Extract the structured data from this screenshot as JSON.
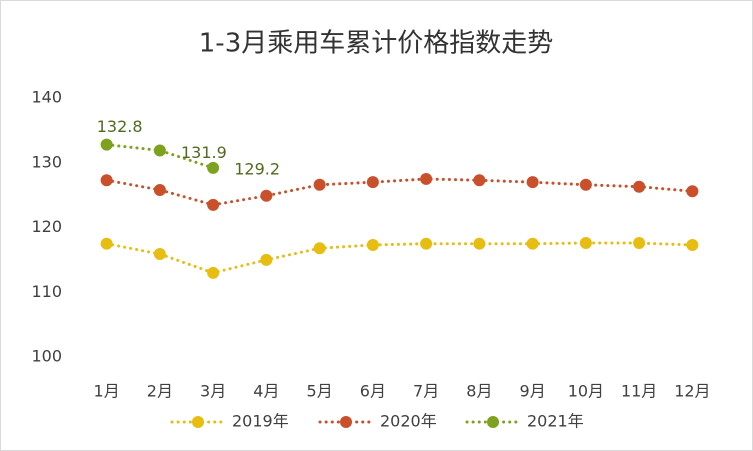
{
  "chart_data": {
    "type": "line",
    "title": "1-3月乘用车累计价格指数走势",
    "categories": [
      "1月",
      "2月",
      "3月",
      "4月",
      "5月",
      "6月",
      "7月",
      "8月",
      "9月",
      "10月",
      "11月",
      "12月"
    ],
    "series": [
      {
        "name": "2019年",
        "color": "#e8bd12",
        "values": [
          117.5,
          115.9,
          113.0,
          115.0,
          116.8,
          117.3,
          117.5,
          117.5,
          117.5,
          117.6,
          117.6,
          117.3
        ]
      },
      {
        "name": "2020年",
        "color": "#c9502b",
        "values": [
          127.3,
          125.8,
          123.5,
          124.9,
          126.6,
          127.0,
          127.5,
          127.3,
          127.0,
          126.6,
          126.3,
          125.6
        ]
      },
      {
        "name": "2021年",
        "color": "#7ea21f",
        "values": [
          132.8,
          131.9,
          129.2,
          null,
          null,
          null,
          null,
          null,
          null,
          null,
          null,
          null
        ]
      }
    ],
    "data_labels_series": 2,
    "ylim": [
      100,
      140
    ],
    "yticks": [
      100,
      110,
      120,
      130,
      140
    ],
    "grid": false,
    "legend": "bottom"
  }
}
